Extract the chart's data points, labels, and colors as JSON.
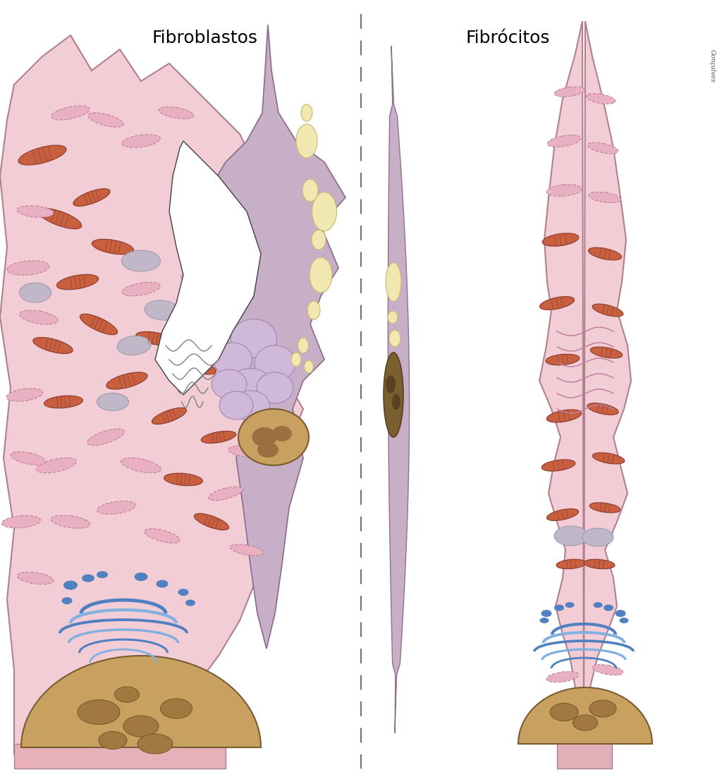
{
  "title_left": "Fibroblastos",
  "title_right": "Fibrócitos",
  "title_fontsize": 18,
  "bg_color": "#ffffff",
  "cell_pink": "#f2cdd5",
  "cell_pink_border": "#b08090",
  "cell_purple": "#c8afc8",
  "cell_purple_border": "#907090",
  "nucleus_tan": "#c8a060",
  "nucleus_dark": "#9b7c4a",
  "nucleus_border": "#7a5c30",
  "mito_pink_fc": "#e8b0c0",
  "mito_pink_ec": "#c080a0",
  "mito_red_fc": "#c86040",
  "mito_red_ec": "#904030",
  "golgi_blue1": "#5080c0",
  "golgi_blue2": "#80b0e0",
  "vesicle_cream": "#f0e8b0",
  "vesicle_cream_ec": "#c8b870",
  "gray_oval": "#c0b8c8",
  "gray_oval_ec": "#9090a8",
  "dashed_color": "#707070",
  "watermark": "Gonçalves",
  "fig_width": 10.24,
  "fig_height": 11.02,
  "dpi": 100
}
